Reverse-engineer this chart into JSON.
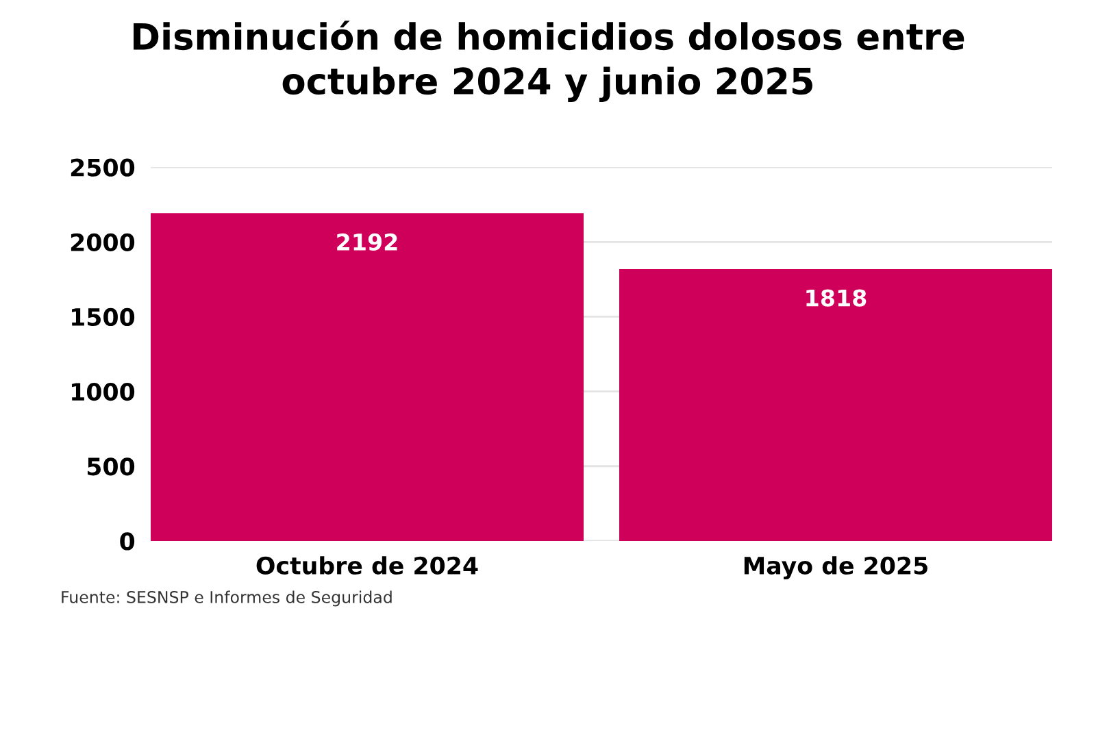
{
  "chart_data": {
    "type": "bar",
    "title": "Disminución de homicidios dolosos entre\noctubre 2024 y junio 2025",
    "categories": [
      "Octubre de 2024",
      "Mayo de 2025"
    ],
    "values": [
      2192,
      1818
    ],
    "color": "#cf0059",
    "ylim": [
      0,
      2500
    ],
    "yticks": [
      0,
      500,
      1000,
      1500,
      2000,
      2500
    ],
    "grid": "y",
    "data_labels": true,
    "legend": false,
    "annotations": [
      "Fuente: SESNSP e Informes de Seguridad"
    ]
  }
}
